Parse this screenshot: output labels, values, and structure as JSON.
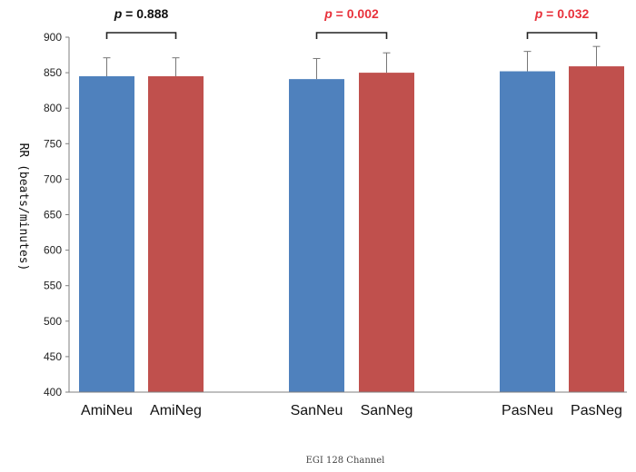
{
  "chart_data": {
    "type": "bar",
    "title": "",
    "ylabel": "RR (beats/minutes)",
    "xlabel": "",
    "ylim": [
      400,
      900
    ],
    "yticks": [
      400,
      450,
      500,
      550,
      600,
      650,
      700,
      750,
      800,
      850,
      900
    ],
    "grid": false,
    "bars": [
      {
        "label": "AmiNeu",
        "value": 845,
        "error": 26,
        "color": "#4f81bd"
      },
      {
        "label": "AmiNeg",
        "value": 845,
        "error": 26,
        "color": "#c0504d"
      },
      {
        "label": "SanNeu",
        "value": 841,
        "error": 29,
        "color": "#4f81bd"
      },
      {
        "label": "SanNeg",
        "value": 850,
        "error": 28,
        "color": "#c0504d"
      },
      {
        "label": "PasNeu",
        "value": 852,
        "error": 28,
        "color": "#4f81bd"
      },
      {
        "label": "PasNeg",
        "value": 859,
        "error": 28,
        "color": "#c0504d"
      }
    ],
    "comparisons": [
      {
        "p_symbol": "p",
        "p_text": " = 0.888",
        "color": "#111111",
        "pair": [
          0,
          1
        ]
      },
      {
        "p_symbol": "p",
        "p_text": " = 0.002",
        "color": "#e8323c",
        "pair": [
          2,
          3
        ]
      },
      {
        "p_symbol": "p",
        "p_text": " = 0.032",
        "color": "#e8323c",
        "pair": [
          4,
          5
        ]
      }
    ]
  },
  "footer": "EGI 128 Channel"
}
